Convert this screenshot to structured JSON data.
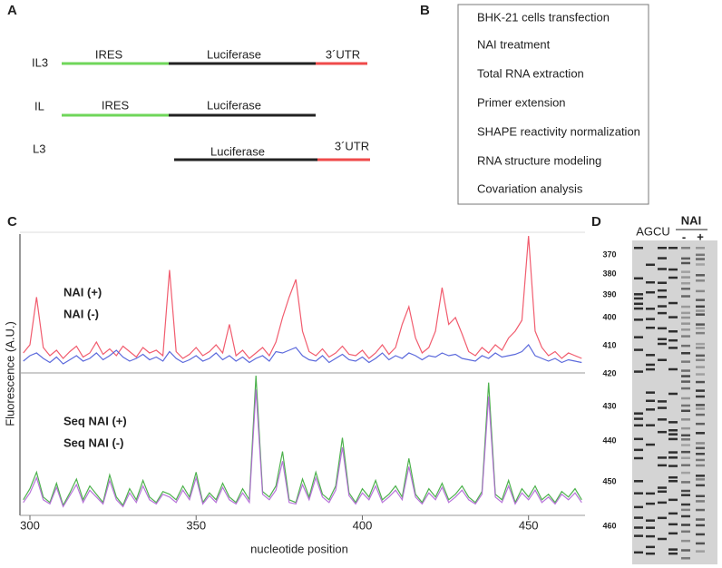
{
  "panel_a": {
    "label": "A",
    "constructs": [
      {
        "name": "IL3",
        "labels": [
          "IRES",
          "Luciferase",
          "3´UTR"
        ]
      },
      {
        "name": "IL",
        "labels": [
          "IRES",
          "Luciferase"
        ]
      },
      {
        "name": "L3",
        "labels": [
          "Luciferase",
          "3´UTR"
        ]
      }
    ]
  },
  "panel_b": {
    "label": "B",
    "steps": [
      "BHK-21 cells transfection",
      "NAI treatment",
      "Total RNA extraction",
      "Primer extension",
      "SHAPE reactivity normalization",
      "RNA structure modeling",
      "Covariation analysis"
    ]
  },
  "chart_data": {
    "type": "line",
    "panel_label": "C",
    "ylabel": "Fluorescence  (A.U.)",
    "xlabel": "nucleotide position",
    "x": [
      298,
      300,
      302,
      304,
      306,
      308,
      310,
      312,
      314,
      316,
      318,
      320,
      322,
      324,
      326,
      328,
      330,
      332,
      334,
      336,
      338,
      340,
      342,
      344,
      346,
      348,
      350,
      352,
      354,
      356,
      358,
      360,
      362,
      364,
      366,
      368,
      370,
      372,
      374,
      376,
      378,
      380,
      382,
      384,
      386,
      388,
      390,
      392,
      394,
      396,
      398,
      400,
      402,
      404,
      406,
      408,
      410,
      412,
      414,
      416,
      418,
      420,
      422,
      424,
      426,
      428,
      430,
      432,
      434,
      436,
      438,
      440,
      442,
      444,
      446,
      448,
      450,
      452,
      454,
      456,
      458,
      460,
      462,
      464,
      466
    ],
    "xlim": [
      297,
      467
    ],
    "xticks": [
      300,
      350,
      400,
      450
    ],
    "ylim": [
      0,
      100
    ],
    "series": [
      {
        "name": "NAI (+)",
        "color": "#ef4a5e",
        "subplot": 0,
        "values": [
          14,
          20,
          55,
          18,
          12,
          16,
          10,
          15,
          19,
          11,
          14,
          22,
          13,
          17,
          12,
          19,
          15,
          11,
          18,
          14,
          16,
          12,
          75,
          15,
          10,
          13,
          18,
          12,
          15,
          20,
          14,
          35,
          12,
          16,
          10,
          14,
          18,
          12,
          22,
          40,
          55,
          68,
          30,
          15,
          12,
          17,
          11,
          14,
          19,
          13,
          12,
          16,
          10,
          14,
          20,
          13,
          18,
          35,
          48,
          25,
          14,
          18,
          30,
          62,
          35,
          40,
          28,
          15,
          12,
          18,
          14,
          20,
          16,
          25,
          30,
          38,
          100,
          30,
          18,
          12,
          15,
          10,
          14,
          12,
          10
        ]
      },
      {
        "name": "NAI (-)",
        "color": "#4a5ad8",
        "subplot": 0,
        "values": [
          8,
          12,
          14,
          10,
          7,
          11,
          6,
          9,
          12,
          8,
          10,
          14,
          9,
          12,
          16,
          11,
          8,
          10,
          13,
          9,
          11,
          8,
          15,
          10,
          7,
          9,
          12,
          8,
          10,
          14,
          9,
          12,
          8,
          11,
          7,
          10,
          12,
          8,
          15,
          14,
          16,
          18,
          12,
          9,
          8,
          12,
          7,
          10,
          13,
          9,
          8,
          11,
          7,
          10,
          14,
          9,
          12,
          10,
          14,
          12,
          9,
          12,
          11,
          14,
          12,
          13,
          10,
          9,
          8,
          12,
          10,
          14,
          11,
          12,
          13,
          15,
          20,
          12,
          10,
          8,
          10,
          7,
          9,
          8,
          7
        ]
      },
      {
        "name": "Seq NAI (+)",
        "color": "#3aa83a",
        "subplot": 1,
        "values": [
          10,
          18,
          30,
          12,
          8,
          22,
          6,
          15,
          25,
          10,
          20,
          14,
          8,
          28,
          12,
          6,
          18,
          10,
          24,
          12,
          8,
          16,
          14,
          10,
          20,
          12,
          30,
          8,
          15,
          10,
          22,
          12,
          8,
          18,
          10,
          100,
          16,
          12,
          20,
          45,
          10,
          8,
          25,
          12,
          30,
          14,
          10,
          20,
          55,
          15,
          8,
          18,
          12,
          24,
          10,
          14,
          20,
          12,
          40,
          14,
          8,
          18,
          12,
          22,
          10,
          14,
          20,
          12,
          8,
          16,
          95,
          14,
          10,
          24,
          8,
          18,
          12,
          20,
          10,
          14,
          8,
          16,
          12,
          18,
          10
        ]
      },
      {
        "name": "Seq NAI (-)",
        "color": "#b065d6",
        "subplot": 1,
        "values": [
          8,
          15,
          26,
          10,
          7,
          19,
          5,
          13,
          21,
          8,
          17,
          12,
          7,
          24,
          10,
          5,
          15,
          8,
          20,
          10,
          7,
          14,
          12,
          8,
          17,
          10,
          26,
          7,
          13,
          8,
          19,
          10,
          7,
          15,
          8,
          90,
          14,
          10,
          17,
          38,
          8,
          7,
          21,
          10,
          26,
          12,
          8,
          17,
          48,
          13,
          7,
          15,
          10,
          20,
          8,
          12,
          17,
          10,
          34,
          12,
          7,
          15,
          10,
          19,
          8,
          12,
          17,
          10,
          7,
          14,
          85,
          12,
          8,
          20,
          7,
          15,
          10,
          17,
          8,
          12,
          7,
          14,
          10,
          15,
          8
        ]
      }
    ]
  },
  "panel_d": {
    "label": "D",
    "lanes": "AGCU",
    "reagent": "NAI",
    "minus": "-",
    "plus": "+",
    "positions": [
      "370",
      "380",
      "390",
      "400",
      "410",
      "420",
      "430",
      "440",
      "450",
      "460"
    ]
  }
}
